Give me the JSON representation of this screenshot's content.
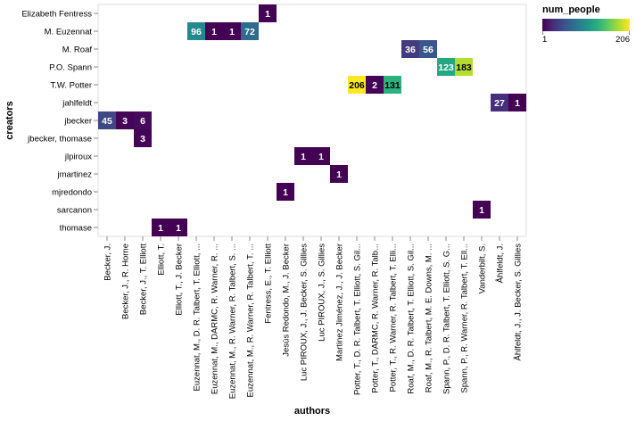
{
  "chart_data": {
    "type": "heatmap",
    "xlabel": "authors",
    "ylabel": "creators",
    "x_categories": [
      "Becker, J.",
      "Becker, J., R. Horne",
      "Becker, J., T. Elliott",
      "Elliott, T.",
      "Elliott, T., J. Becker",
      "Euzennat, M., D. R. Talbert, T. Elliott, ...",
      "Euzennat, M., DARMC, R. Warner, R. ...",
      "Euzennat, M., R. Warner, R. Talbert, S. ...",
      "Euzennat, M., R. Warner, R. Talbert, T. ...",
      "Fentress, E., T. Elliott",
      "Jesús Redondo, M., J. Becker",
      "Luc PIROUX, J., J. Becker, S. Gillies",
      "Luc PIROUX, J., S. Gillies",
      "Martinez Jiménez, J., J. Becker",
      "Potter, T., D. R. Talbert, T. Elliott, S. Gil...",
      "Potter, T., DARMC, R. Warner, R. Talb...",
      "Potter, T., R. Warner, R. Talbert, T. Elli...",
      "Roaf, M., D. R. Talbert, T. Elliott, S. Gil...",
      "Roaf, M., R. Talbert, M. E. Downs, M. ...",
      "Spann, P., D. R. Talbert, T. Elliott, S. G...",
      "Spann, P., R. Warner, R. Talbert, T. Ell...",
      "Vanderbilt, S.",
      "Åhlfeldt, J.",
      "Åhlfeldt, J., J. Becker, S. Gillies"
    ],
    "y_categories": [
      "Elizabeth Fentress",
      "M. Euzennat",
      "M. Roaf",
      "P.O. Spann",
      "T.W. Potter",
      "jahlfeldt",
      "jbecker",
      "jbecker, thomase",
      "jlpiroux",
      "jmartinez",
      "mjredondo",
      "sarcanon",
      "thomase"
    ],
    "cells": [
      {
        "x": 9,
        "y": 0,
        "value": 1
      },
      {
        "x": 5,
        "y": 1,
        "value": 96
      },
      {
        "x": 6,
        "y": 1,
        "value": 1
      },
      {
        "x": 7,
        "y": 1,
        "value": 1
      },
      {
        "x": 8,
        "y": 1,
        "value": 72
      },
      {
        "x": 17,
        "y": 2,
        "value": 36
      },
      {
        "x": 18,
        "y": 2,
        "value": 56
      },
      {
        "x": 19,
        "y": 3,
        "value": 123
      },
      {
        "x": 20,
        "y": 3,
        "value": 183
      },
      {
        "x": 14,
        "y": 4,
        "value": 206
      },
      {
        "x": 15,
        "y": 4,
        "value": 2
      },
      {
        "x": 16,
        "y": 4,
        "value": 131
      },
      {
        "x": 22,
        "y": 5,
        "value": 27
      },
      {
        "x": 23,
        "y": 5,
        "value": 1
      },
      {
        "x": 0,
        "y": 6,
        "value": 45
      },
      {
        "x": 1,
        "y": 6,
        "value": 3
      },
      {
        "x": 2,
        "y": 6,
        "value": 6
      },
      {
        "x": 2,
        "y": 7,
        "value": 3
      },
      {
        "x": 11,
        "y": 8,
        "value": 1
      },
      {
        "x": 12,
        "y": 8,
        "value": 1
      },
      {
        "x": 13,
        "y": 9,
        "value": 1
      },
      {
        "x": 10,
        "y": 10,
        "value": 1
      },
      {
        "x": 21,
        "y": 11,
        "value": 1
      },
      {
        "x": 3,
        "y": 12,
        "value": 1
      },
      {
        "x": 4,
        "y": 12,
        "value": 1
      }
    ],
    "color_scale": {
      "name": "viridis",
      "domain": [
        1,
        206
      ]
    },
    "legend": {
      "title": "num_people",
      "min_label": "1",
      "max_label": "206",
      "placement": "top-right"
    }
  }
}
